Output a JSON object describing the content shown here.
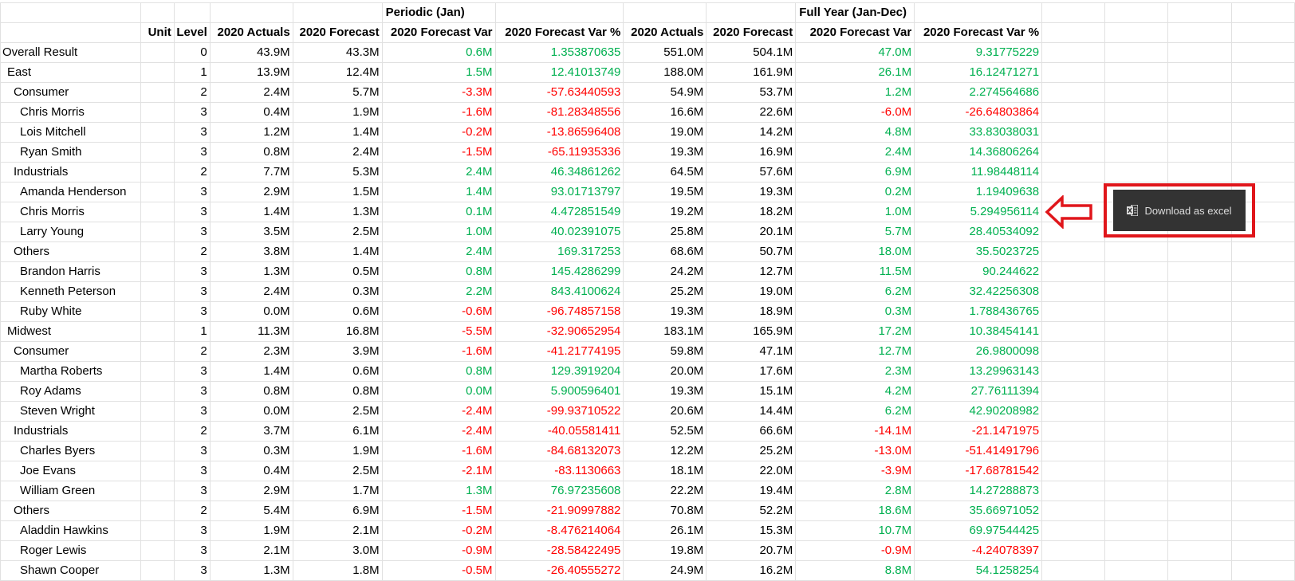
{
  "header": {
    "group_periodic": "Periodic (Jan)",
    "group_fullyear": "Full Year (Jan-Dec)",
    "columns": [
      "",
      "Unit",
      "Level",
      "2020 Actuals",
      "2020 Forecast",
      "2020 Forecast Var",
      "2020 Forecast Var %",
      "2020 Actuals",
      "2020 Forecast",
      "2020 Forecast Var",
      "2020 Forecast Var %"
    ]
  },
  "rows": [
    {
      "name": "Overall Result",
      "level": "0",
      "values": [
        "43.9M",
        "43.3M",
        "0.6M",
        "1.353870635",
        "551.0M",
        "504.1M",
        "47.0M",
        "9.31775229"
      ]
    },
    {
      "name": "East",
      "level": "1",
      "values": [
        "13.9M",
        "12.4M",
        "1.5M",
        "12.41013749",
        "188.0M",
        "161.9M",
        "26.1M",
        "16.12471271"
      ]
    },
    {
      "name": "Consumer",
      "level": "2",
      "values": [
        "2.4M",
        "5.7M",
        "-3.3M",
        "-57.63440593",
        "54.9M",
        "53.7M",
        "1.2M",
        "2.274564686"
      ]
    },
    {
      "name": "Chris Morris",
      "level": "3",
      "values": [
        "0.4M",
        "1.9M",
        "-1.6M",
        "-81.28348556",
        "16.6M",
        "22.6M",
        "-6.0M",
        "-26.64803864"
      ]
    },
    {
      "name": "Lois Mitchell",
      "level": "3",
      "values": [
        "1.2M",
        "1.4M",
        "-0.2M",
        "-13.86596408",
        "19.0M",
        "14.2M",
        "4.8M",
        "33.83038031"
      ]
    },
    {
      "name": "Ryan Smith",
      "level": "3",
      "values": [
        "0.8M",
        "2.4M",
        "-1.5M",
        "-65.11935336",
        "19.3M",
        "16.9M",
        "2.4M",
        "14.36806264"
      ]
    },
    {
      "name": "Industrials",
      "level": "2",
      "values": [
        "7.7M",
        "5.3M",
        "2.4M",
        "46.34861262",
        "64.5M",
        "57.6M",
        "6.9M",
        "11.98448114"
      ]
    },
    {
      "name": "Amanda Henderson",
      "level": "3",
      "values": [
        "2.9M",
        "1.5M",
        "1.4M",
        "93.01713797",
        "19.5M",
        "19.3M",
        "0.2M",
        "1.19409638"
      ]
    },
    {
      "name": "Chris Morris",
      "level": "3",
      "values": [
        "1.4M",
        "1.3M",
        "0.1M",
        "4.472851549",
        "19.2M",
        "18.2M",
        "1.0M",
        "5.294956114"
      ]
    },
    {
      "name": "Larry Young",
      "level": "3",
      "values": [
        "3.5M",
        "2.5M",
        "1.0M",
        "40.02391075",
        "25.8M",
        "20.1M",
        "5.7M",
        "28.40534092"
      ]
    },
    {
      "name": "Others",
      "level": "2",
      "values": [
        "3.8M",
        "1.4M",
        "2.4M",
        "169.317253",
        "68.6M",
        "50.7M",
        "18.0M",
        "35.5023725"
      ]
    },
    {
      "name": "Brandon Harris",
      "level": "3",
      "values": [
        "1.3M",
        "0.5M",
        "0.8M",
        "145.4286299",
        "24.2M",
        "12.7M",
        "11.5M",
        "90.244622"
      ]
    },
    {
      "name": "Kenneth Peterson",
      "level": "3",
      "values": [
        "2.4M",
        "0.3M",
        "2.2M",
        "843.4100624",
        "25.2M",
        "19.0M",
        "6.2M",
        "32.42256308"
      ]
    },
    {
      "name": "Ruby White",
      "level": "3",
      "values": [
        "0.0M",
        "0.6M",
        "-0.6M",
        "-96.74857158",
        "19.3M",
        "18.9M",
        "0.3M",
        "1.788436765"
      ]
    },
    {
      "name": "Midwest",
      "level": "1",
      "values": [
        "11.3M",
        "16.8M",
        "-5.5M",
        "-32.90652954",
        "183.1M",
        "165.9M",
        "17.2M",
        "10.38454141"
      ]
    },
    {
      "name": "Consumer",
      "level": "2",
      "values": [
        "2.3M",
        "3.9M",
        "-1.6M",
        "-41.21774195",
        "59.8M",
        "47.1M",
        "12.7M",
        "26.9800098"
      ]
    },
    {
      "name": "Martha Roberts",
      "level": "3",
      "values": [
        "1.4M",
        "0.6M",
        "0.8M",
        "129.3919204",
        "20.0M",
        "17.6M",
        "2.3M",
        "13.29963143"
      ]
    },
    {
      "name": "Roy Adams",
      "level": "3",
      "values": [
        "0.8M",
        "0.8M",
        "0.0M",
        "5.900596401",
        "19.3M",
        "15.1M",
        "4.2M",
        "27.76111394"
      ]
    },
    {
      "name": "Steven Wright",
      "level": "3",
      "values": [
        "0.0M",
        "2.5M",
        "-2.4M",
        "-99.93710522",
        "20.6M",
        "14.4M",
        "6.2M",
        "42.90208982"
      ]
    },
    {
      "name": "Industrials",
      "level": "2",
      "values": [
        "3.7M",
        "6.1M",
        "-2.4M",
        "-40.05581411",
        "52.5M",
        "66.6M",
        "-14.1M",
        "-21.1471975"
      ]
    },
    {
      "name": "Charles Byers",
      "level": "3",
      "values": [
        "0.3M",
        "1.9M",
        "-1.6M",
        "-84.68132073",
        "12.2M",
        "25.2M",
        "-13.0M",
        "-51.41491796"
      ]
    },
    {
      "name": "Joe Evans",
      "level": "3",
      "values": [
        "0.4M",
        "2.5M",
        "-2.1M",
        "-83.1130663",
        "18.1M",
        "22.0M",
        "-3.9M",
        "-17.68781542"
      ]
    },
    {
      "name": "William Green",
      "level": "3",
      "values": [
        "2.9M",
        "1.7M",
        "1.3M",
        "76.97235608",
        "22.2M",
        "19.4M",
        "2.8M",
        "14.27288873"
      ]
    },
    {
      "name": "Others",
      "level": "2",
      "values": [
        "5.4M",
        "6.9M",
        "-1.5M",
        "-21.90997882",
        "70.8M",
        "52.2M",
        "18.6M",
        "35.66971052"
      ]
    },
    {
      "name": "Aladdin Hawkins",
      "level": "3",
      "values": [
        "1.9M",
        "2.1M",
        "-0.2M",
        "-8.476214064",
        "26.1M",
        "15.3M",
        "10.7M",
        "69.97544425"
      ]
    },
    {
      "name": "Roger Lewis",
      "level": "3",
      "values": [
        "2.1M",
        "3.0M",
        "-0.9M",
        "-28.58422495",
        "19.8M",
        "20.7M",
        "-0.9M",
        "-4.24078397"
      ]
    },
    {
      "name": "Shawn Cooper",
      "level": "3",
      "values": [
        "1.3M",
        "1.8M",
        "-0.5M",
        "-26.40555272",
        "24.9M",
        "16.2M",
        "8.8M",
        "54.1258254"
      ]
    }
  ],
  "download_button": {
    "label": "Download as excel",
    "icon": "excel-icon"
  },
  "colors": {
    "positive": "#00b050",
    "negative": "#ff0000",
    "button_bg": "#333333",
    "highlight": "#e0161b"
  }
}
